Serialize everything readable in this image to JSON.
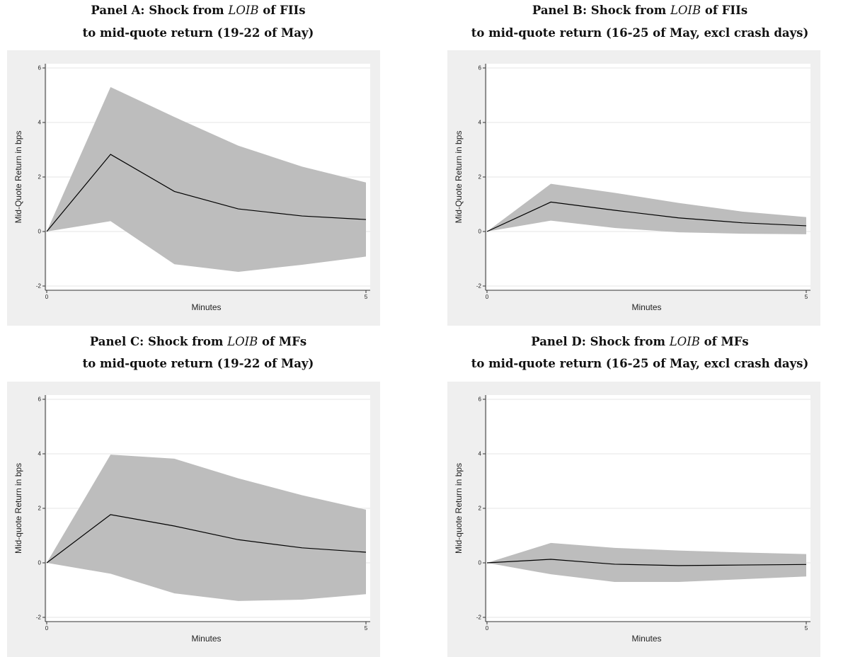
{
  "chart_data": [
    {
      "type": "area",
      "panel": "A",
      "title_line1": {
        "pre": "Panel A: Shock from ",
        "var": "LOIB",
        "post": " of FIIs"
      },
      "title_line2": "to mid-quote return (19-22 of May)",
      "xlabel": "Minutes",
      "ylabel": "Mid-Quote Return in bps",
      "xlim": [
        0,
        5
      ],
      "ylim": [
        -2,
        6
      ],
      "xticks": [
        0,
        5
      ],
      "yticks": [
        -2,
        0,
        2,
        4,
        6
      ],
      "x": [
        0,
        1,
        2,
        3,
        4,
        5
      ],
      "series": [
        {
          "role": "ci_upper",
          "values": [
            0,
            5.3,
            4.2,
            3.15,
            2.38,
            1.8
          ]
        },
        {
          "role": "ci_lower",
          "values": [
            0,
            0.38,
            -1.2,
            -1.48,
            -1.22,
            -0.92
          ]
        },
        {
          "role": "estimate",
          "values": [
            0,
            2.83,
            1.47,
            0.83,
            0.57,
            0.44
          ]
        }
      ],
      "grid": true,
      "colors": {
        "band": "#bdbdbd",
        "line": "#000000",
        "background": "#efefef"
      }
    },
    {
      "type": "area",
      "panel": "B",
      "title_line1": {
        "pre": "Panel B: Shock from ",
        "var": "LOIB",
        "post": " of FIIs"
      },
      "title_line2": "to mid-quote return (16-25 of May, excl crash days)",
      "xlabel": "Minutes",
      "ylabel": "Mid-Quote Return in bps",
      "xlim": [
        0,
        5
      ],
      "ylim": [
        -2,
        6
      ],
      "xticks": [
        0,
        5
      ],
      "yticks": [
        -2,
        0,
        2,
        4,
        6
      ],
      "x": [
        0,
        1,
        2,
        3,
        4,
        5
      ],
      "series": [
        {
          "role": "ci_upper",
          "values": [
            0,
            1.75,
            1.42,
            1.05,
            0.73,
            0.53
          ]
        },
        {
          "role": "ci_lower",
          "values": [
            0,
            0.4,
            0.13,
            -0.03,
            -0.08,
            -0.1
          ]
        },
        {
          "role": "estimate",
          "values": [
            0,
            1.08,
            0.78,
            0.5,
            0.32,
            0.21
          ]
        }
      ],
      "grid": true,
      "colors": {
        "band": "#bdbdbd",
        "line": "#000000",
        "background": "#efefef"
      }
    },
    {
      "type": "area",
      "panel": "C",
      "title_line1": {
        "pre": "Panel C: Shock from ",
        "var": "LOIB",
        "post": " of MFs"
      },
      "title_line2": "to mid-quote return (19-22 of May)",
      "xlabel": "Minutes",
      "ylabel": "Mid-quote Return in bps",
      "xlim": [
        0,
        5
      ],
      "ylim": [
        -2,
        6
      ],
      "xticks": [
        0,
        5
      ],
      "yticks": [
        -2,
        0,
        2,
        4,
        6
      ],
      "x": [
        0,
        1,
        2,
        3,
        4,
        5
      ],
      "series": [
        {
          "role": "ci_upper",
          "values": [
            0,
            3.97,
            3.82,
            3.1,
            2.48,
            1.95
          ]
        },
        {
          "role": "ci_lower",
          "values": [
            0,
            -0.4,
            -1.12,
            -1.4,
            -1.35,
            -1.15
          ]
        },
        {
          "role": "estimate",
          "values": [
            0,
            1.77,
            1.35,
            0.85,
            0.55,
            0.39
          ]
        }
      ],
      "grid": true,
      "colors": {
        "band": "#bdbdbd",
        "line": "#000000",
        "background": "#efefef"
      }
    },
    {
      "type": "area",
      "panel": "D",
      "title_line1": {
        "pre": "Panel D: Shock from ",
        "var": "LOIB",
        "post": " of MFs"
      },
      "title_line2": "to mid-quote return (16-25 of May, excl crash days)",
      "xlabel": "Minutes",
      "ylabel": "Mid-quote Return in bps",
      "xlim": [
        0,
        5
      ],
      "ylim": [
        -2,
        6
      ],
      "xticks": [
        0,
        5
      ],
      "yticks": [
        -2,
        0,
        2,
        4,
        6
      ],
      "x": [
        0,
        1,
        2,
        3,
        4,
        5
      ],
      "series": [
        {
          "role": "ci_upper",
          "values": [
            0,
            0.73,
            0.55,
            0.45,
            0.38,
            0.32
          ]
        },
        {
          "role": "ci_lower",
          "values": [
            0,
            -0.42,
            -0.7,
            -0.7,
            -0.6,
            -0.5
          ]
        },
        {
          "role": "estimate",
          "values": [
            0,
            0.13,
            -0.05,
            -0.1,
            -0.08,
            -0.06
          ]
        }
      ],
      "grid": true,
      "colors": {
        "band": "#bdbdbd",
        "line": "#000000",
        "background": "#efefef"
      }
    }
  ]
}
